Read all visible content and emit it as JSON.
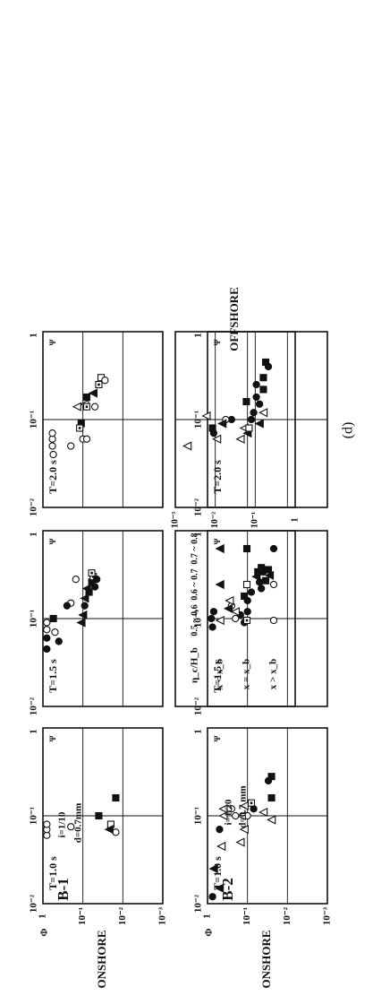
{
  "figure": {
    "panel_label": "(d)",
    "axis_labels": {
      "onshore": "ONSHORE",
      "offshore": "OFFSHORE",
      "phi": "Φ",
      "psi": "Ψ"
    },
    "tick_labels_y": [
      "1",
      "10⁻¹",
      "10⁻²",
      "10⁻³"
    ],
    "tick_labels_y_offshore": [
      "10⁻³",
      "10⁻²",
      "10⁻¹",
      "1"
    ],
    "tick_labels_x": [
      "10⁻²",
      "10⁻¹",
      "1"
    ]
  },
  "legend": {
    "header": "η_c/H_b",
    "ranges": [
      "0.5 ~ 0.6",
      "0.6 ~ 0.7",
      "0.7 ~ 0.8"
    ],
    "rows": [
      "x < x_b",
      "x = x_b",
      "x > x_b"
    ]
  },
  "chart_data": [
    {
      "type": "scatter",
      "panel": "B-1",
      "case": "B-1",
      "slope": "i=1/10",
      "period": "T=1.0 s",
      "grain": "d=0.7mm",
      "xscale": "log",
      "yscale": "log",
      "xlim": [
        0.01,
        1
      ],
      "ylim": [
        0.001,
        1
      ],
      "onshore_points": [
        {
          "x": 0.08,
          "y": 0.02,
          "m": "sq"
        },
        {
          "x": 0.065,
          "y": 0.015,
          "m": "ci"
        },
        {
          "x": 0.07,
          "y": 0.022,
          "m": "tf"
        },
        {
          "x": 0.16,
          "y": 0.015,
          "m": "sf"
        },
        {
          "x": 0.1,
          "y": 0.04,
          "m": "sf"
        },
        {
          "x": 0.075,
          "y": 0.2,
          "m": "ci"
        },
        {
          "x": 0.06,
          "y": 0.8,
          "m": "ci"
        },
        {
          "x": 0.07,
          "y": 0.8,
          "m": "ci"
        },
        {
          "x": 0.08,
          "y": 0.8,
          "m": "ci"
        }
      ],
      "offshore_points": [
        {
          "x": 0.08,
          "y": 0.07,
          "m": "sq"
        },
        {
          "x": 0.16,
          "y": 0.06,
          "m": "sf"
        },
        {
          "x": 0.09,
          "y": 0.015,
          "m": "tf"
        },
        {
          "x": 0.06,
          "y": 0.011,
          "m": "to"
        },
        {
          "x": 0.11,
          "y": 0.006,
          "m": "to"
        },
        {
          "x": 0.05,
          "y": 0.002,
          "m": "to"
        }
      ]
    },
    {
      "type": "scatter",
      "panel": "B-1",
      "period": "T=1.5 s",
      "xscale": "log",
      "yscale": "log",
      "xlim": [
        0.01,
        1
      ],
      "ylim": [
        0.001,
        1
      ],
      "onshore_points": [
        {
          "x": 0.2,
          "y": 0.07,
          "m": "sf"
        },
        {
          "x": 0.26,
          "y": 0.06,
          "m": "sf"
        },
        {
          "x": 0.3,
          "y": 0.055,
          "m": "so"
        },
        {
          "x": 0.33,
          "y": 0.06,
          "m": "so"
        },
        {
          "x": 0.23,
          "y": 0.05,
          "m": "cf"
        },
        {
          "x": 0.28,
          "y": 0.045,
          "m": "cf"
        },
        {
          "x": 0.22,
          "y": 0.08,
          "m": "tf"
        },
        {
          "x": 0.17,
          "y": 0.09,
          "m": "tf"
        },
        {
          "x": 0.14,
          "y": 0.09,
          "m": "cf"
        },
        {
          "x": 0.11,
          "y": 0.1,
          "m": "tf"
        },
        {
          "x": 0.09,
          "y": 0.11,
          "m": "tf"
        },
        {
          "x": 0.15,
          "y": 0.2,
          "m": "ci"
        },
        {
          "x": 0.14,
          "y": 0.25,
          "m": "cf"
        },
        {
          "x": 0.28,
          "y": 0.15,
          "m": "ci"
        },
        {
          "x": 0.1,
          "y": 0.55,
          "m": "sf"
        },
        {
          "x": 0.07,
          "y": 0.5,
          "m": "ci"
        },
        {
          "x": 0.055,
          "y": 0.4,
          "m": "cf"
        },
        {
          "x": 0.045,
          "y": 0.8,
          "m": "cf"
        },
        {
          "x": 0.06,
          "y": 0.8,
          "m": "cf"
        },
        {
          "x": 0.075,
          "y": 0.8,
          "m": "ci"
        },
        {
          "x": 0.09,
          "y": 0.8,
          "m": "ci"
        }
      ]
    },
    {
      "type": "scatter",
      "panel": "B-1",
      "period": "T=2.0 s",
      "xscale": "log",
      "yscale": "log",
      "xlim": [
        0.01,
        1
      ],
      "ylim": [
        0.001,
        1
      ],
      "onshore_points": [
        {
          "x": 0.3,
          "y": 0.035,
          "m": "sq"
        },
        {
          "x": 0.28,
          "y": 0.028,
          "m": "ci"
        },
        {
          "x": 0.25,
          "y": 0.04,
          "m": "so"
        },
        {
          "x": 0.18,
          "y": 0.08,
          "m": "sf"
        },
        {
          "x": 0.09,
          "y": 0.11,
          "m": "sf"
        },
        {
          "x": 0.14,
          "y": 0.05,
          "m": "ci"
        },
        {
          "x": 0.2,
          "y": 0.055,
          "m": "tf"
        },
        {
          "x": 0.14,
          "y": 0.14,
          "m": "to"
        },
        {
          "x": 0.15,
          "y": 0.09,
          "m": "to"
        },
        {
          "x": 0.14,
          "y": 0.08,
          "m": "so"
        },
        {
          "x": 0.08,
          "y": 0.12,
          "m": "so"
        },
        {
          "x": 0.06,
          "y": 0.1,
          "m": "ci"
        },
        {
          "x": 0.06,
          "y": 0.08,
          "m": "ci"
        },
        {
          "x": 0.05,
          "y": 0.2,
          "m": "ci"
        },
        {
          "x": 0.04,
          "y": 0.55,
          "m": "ci"
        },
        {
          "x": 0.05,
          "y": 0.58,
          "m": "ci"
        },
        {
          "x": 0.06,
          "y": 0.58,
          "m": "ci"
        },
        {
          "x": 0.07,
          "y": 0.58,
          "m": "ci"
        }
      ]
    },
    {
      "type": "scatter",
      "panel": "B-2",
      "case": "B-2",
      "slope": "i=1/20",
      "period": "T=1.0 s",
      "grain": "d=0.7 mm",
      "xscale": "log",
      "yscale": "log",
      "xlim": [
        0.01,
        1
      ],
      "ylim": [
        0.001,
        1
      ],
      "onshore_points": [
        {
          "x": 0.25,
          "y": 0.03,
          "m": "cf"
        },
        {
          "x": 0.28,
          "y": 0.025,
          "m": "sf"
        },
        {
          "x": 0.16,
          "y": 0.025,
          "m": "sf"
        },
        {
          "x": 0.09,
          "y": 0.025,
          "m": "to"
        },
        {
          "x": 0.11,
          "y": 0.04,
          "m": "to"
        },
        {
          "x": 0.12,
          "y": 0.07,
          "m": "cf"
        },
        {
          "x": 0.14,
          "y": 0.08,
          "m": "so"
        },
        {
          "x": 0.1,
          "y": 0.1,
          "m": "ci"
        },
        {
          "x": 0.07,
          "y": 0.12,
          "m": "to"
        },
        {
          "x": 0.13,
          "y": 0.12,
          "m": "to"
        },
        {
          "x": 0.1,
          "y": 0.14,
          "m": "to"
        },
        {
          "x": 0.05,
          "y": 0.15,
          "m": "to"
        },
        {
          "x": 0.1,
          "y": 0.2,
          "m": "ci"
        },
        {
          "x": 0.12,
          "y": 0.25,
          "m": "ci"
        },
        {
          "x": 0.12,
          "y": 0.3,
          "m": "ci"
        },
        {
          "x": 0.12,
          "y": 0.4,
          "m": "to"
        },
        {
          "x": 0.1,
          "y": 0.4,
          "m": "to"
        },
        {
          "x": 0.045,
          "y": 0.45,
          "m": "to"
        },
        {
          "x": 0.025,
          "y": 0.7,
          "m": "tf"
        },
        {
          "x": 0.012,
          "y": 0.75,
          "m": "cf"
        },
        {
          "x": 0.015,
          "y": 0.5,
          "m": "tf"
        },
        {
          "x": 0.07,
          "y": 0.5,
          "m": "cf"
        }
      ]
    },
    {
      "type": "scatter",
      "panel": "B-2",
      "period": "T=1.5 s",
      "xscale": "log",
      "yscale": "log",
      "xlim": [
        0.01,
        1
      ],
      "ylim": [
        0.001,
        1
      ],
      "onshore_points": [
        {
          "x": 0.36,
          "y": 0.03,
          "m": "sf"
        },
        {
          "x": 0.31,
          "y": 0.028,
          "m": "tf"
        },
        {
          "x": 0.27,
          "y": 0.035,
          "m": "sf"
        },
        {
          "x": 0.22,
          "y": 0.045,
          "m": "cf"
        },
        {
          "x": 0.34,
          "y": 0.04,
          "m": "cf"
        },
        {
          "x": 0.26,
          "y": 0.05,
          "m": "cf"
        },
        {
          "x": 0.3,
          "y": 0.06,
          "m": "tf"
        },
        {
          "x": 0.34,
          "y": 0.055,
          "m": "sf"
        },
        {
          "x": 0.38,
          "y": 0.045,
          "m": "sf"
        },
        {
          "x": 0.2,
          "y": 0.08,
          "m": "cf"
        },
        {
          "x": 0.16,
          "y": 0.1,
          "m": "cf"
        },
        {
          "x": 0.18,
          "y": 0.12,
          "m": "sf"
        },
        {
          "x": 0.12,
          "y": 0.1,
          "m": "cf"
        },
        {
          "x": 0.09,
          "y": 0.12,
          "m": "cf"
        },
        {
          "x": 0.11,
          "y": 0.15,
          "m": "cf"
        },
        {
          "x": 0.1,
          "y": 0.2,
          "m": "ci"
        },
        {
          "x": 0.12,
          "y": 0.2,
          "m": "to"
        },
        {
          "x": 0.14,
          "y": 0.25,
          "m": "ci"
        },
        {
          "x": 0.16,
          "y": 0.28,
          "m": "to"
        },
        {
          "x": 0.13,
          "y": 0.3,
          "m": "tf"
        },
        {
          "x": 0.1,
          "y": 0.8,
          "m": "cf"
        },
        {
          "x": 0.08,
          "y": 0.75,
          "m": "cf"
        },
        {
          "x": 0.12,
          "y": 0.7,
          "m": "cf"
        }
      ]
    },
    {
      "type": "scatter",
      "panel": "B-2",
      "period": "T=2.0 s",
      "xscale": "log",
      "yscale": "log",
      "xlim": [
        0.01,
        1
      ],
      "ylim": [
        0.001,
        1
      ],
      "onshore_points": [
        {
          "x": 0.4,
          "y": 0.03,
          "m": "cf"
        },
        {
          "x": 0.45,
          "y": 0.035,
          "m": "sf"
        },
        {
          "x": 0.3,
          "y": 0.04,
          "m": "sf"
        },
        {
          "x": 0.22,
          "y": 0.04,
          "m": "sf"
        },
        {
          "x": 0.15,
          "y": 0.05,
          "m": "cf"
        },
        {
          "x": 0.18,
          "y": 0.06,
          "m": "cf"
        },
        {
          "x": 0.25,
          "y": 0.06,
          "m": "cf"
        },
        {
          "x": 0.12,
          "y": 0.04,
          "m": "to"
        },
        {
          "x": 0.09,
          "y": 0.05,
          "m": "tf"
        },
        {
          "x": 0.12,
          "y": 0.07,
          "m": "cf"
        },
        {
          "x": 0.1,
          "y": 0.08,
          "m": "cf"
        },
        {
          "x": 0.08,
          "y": 0.12,
          "m": "to"
        },
        {
          "x": 0.06,
          "y": 0.15,
          "m": "to"
        },
        {
          "x": 0.07,
          "y": 0.1,
          "m": "tf"
        },
        {
          "x": 0.1,
          "y": 0.25,
          "m": "cf"
        },
        {
          "x": 0.1,
          "y": 0.35,
          "m": "ci"
        },
        {
          "x": 0.07,
          "y": 0.7,
          "m": "cf"
        },
        {
          "x": 0.08,
          "y": 0.75,
          "m": "sf"
        }
      ]
    }
  ]
}
